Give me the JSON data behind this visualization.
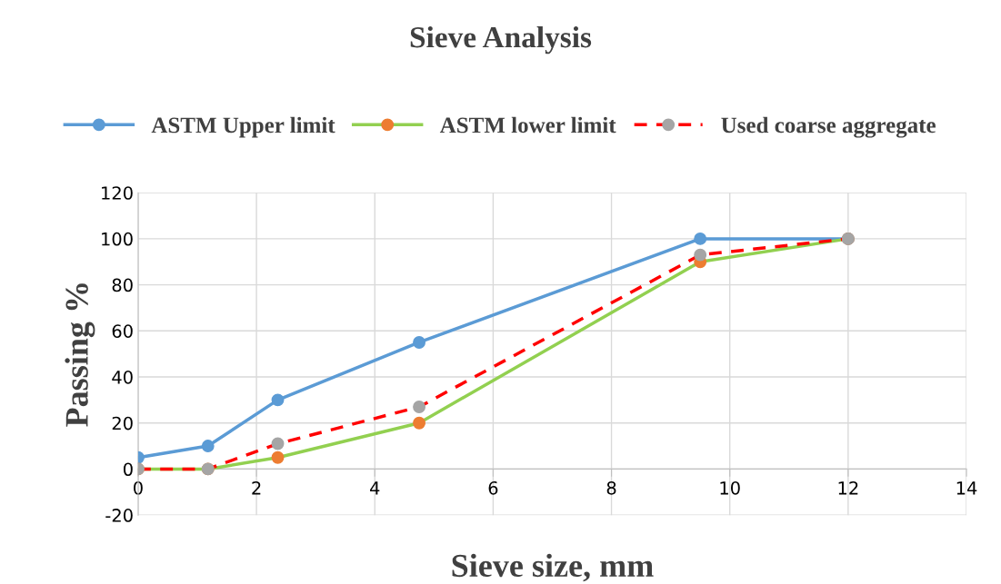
{
  "chart_data": {
    "type": "line",
    "title": "Sieve Analysis",
    "xlabel": "Sieve size, mm",
    "ylabel": "Passing %",
    "x": [
      0,
      1.18,
      2.36,
      4.75,
      9.5,
      12
    ],
    "series": [
      {
        "name": "ASTM Upper limit",
        "color": "#5b9bd5",
        "values": [
          5,
          10,
          30,
          55,
          100,
          100
        ]
      },
      {
        "name": "ASTM lower limit",
        "color": "#92d050",
        "colors": [
          "#ed7d31",
          "#ed7d31",
          "#ed7d31",
          "#ed7d31",
          "#ed7d31",
          "#ed7d31"
        ],
        "values": [
          0,
          0,
          5,
          20,
          90,
          100
        ]
      },
      {
        "name": "Used coarse aggregate",
        "color": "#ff0000",
        "colors": [
          "#a5a5a5",
          "#a5a5a5",
          "#a5a5a5",
          "#a5a5a5",
          "#a5a5a5",
          "#a5a5a5"
        ],
        "line_style": "dashed",
        "values": [
          0,
          0,
          11,
          27,
          93,
          100
        ]
      }
    ],
    "xlim": [
      0,
      14
    ],
    "xticks": [
      0,
      2,
      4,
      6,
      8,
      10,
      12,
      14
    ],
    "ylim": [
      -20,
      120
    ],
    "yticks": [
      -20,
      0,
      20,
      40,
      60,
      80,
      100,
      120
    ],
    "grid": true,
    "legend": "top",
    "marker": "circle",
    "line_style": "solid"
  }
}
